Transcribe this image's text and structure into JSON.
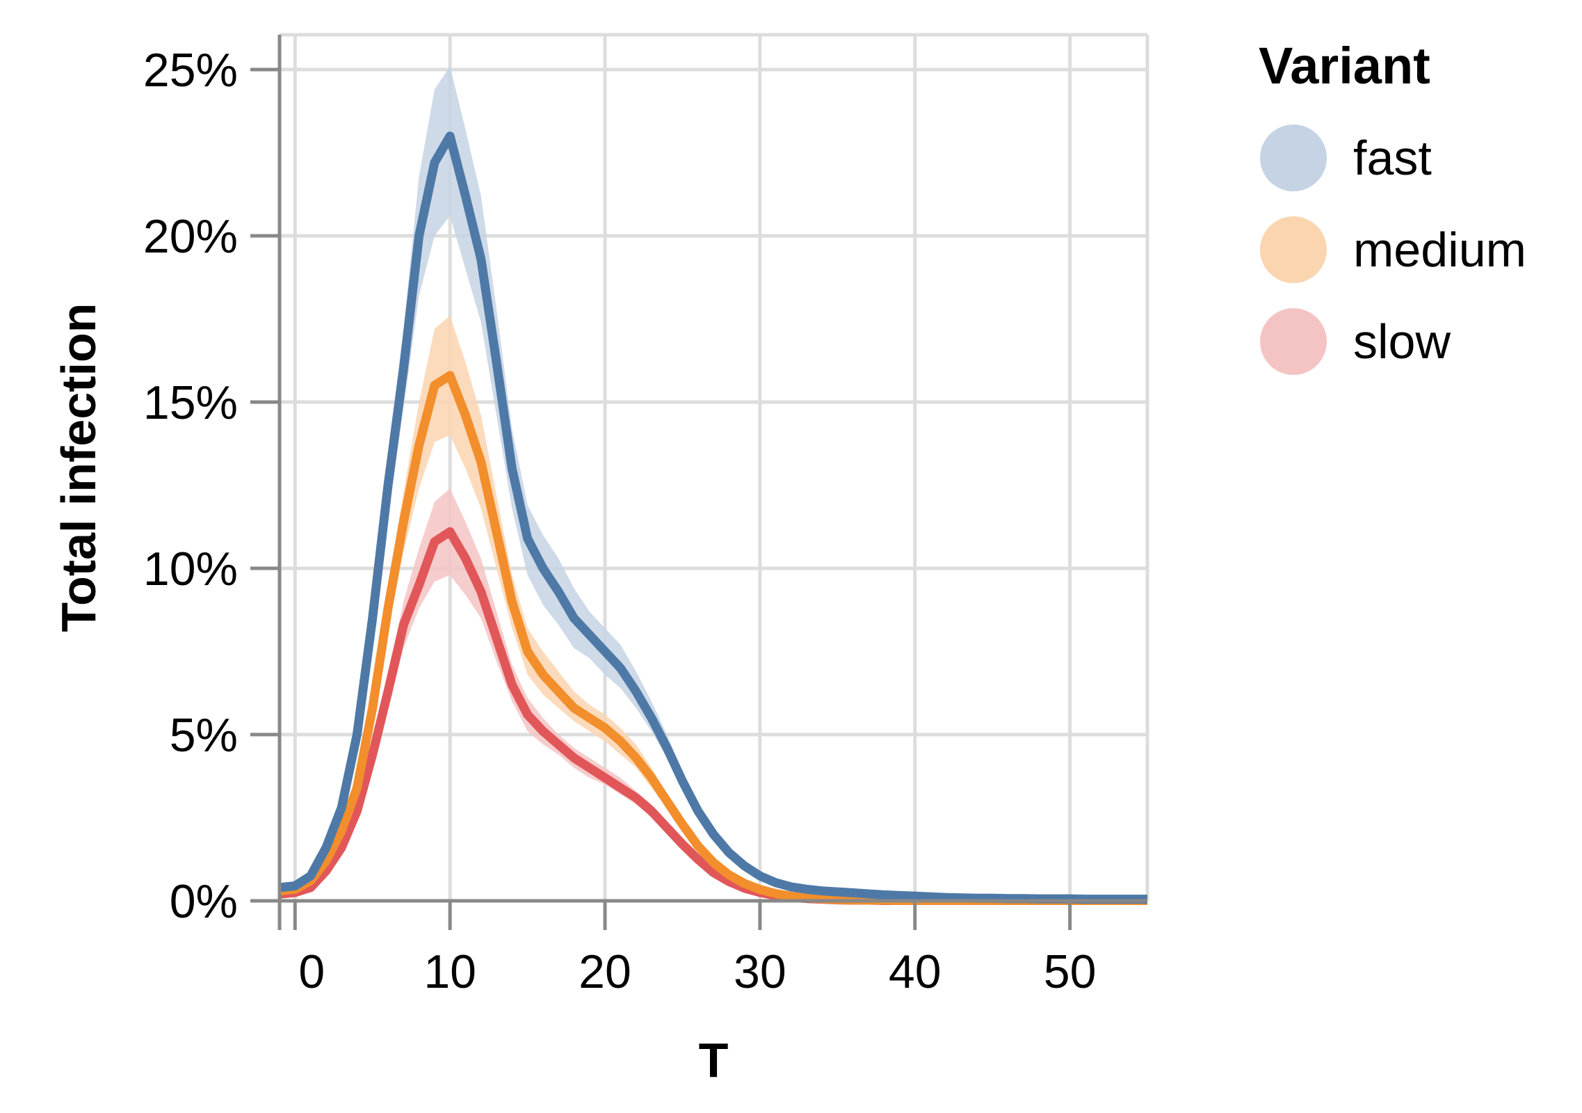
{
  "chart_data": {
    "type": "line",
    "title": "",
    "xlabel": "T",
    "ylabel": "Total infection",
    "xlim": [
      -1,
      55
    ],
    "ylim": [
      0,
      0.25
    ],
    "x_ticks": [
      0,
      10,
      20,
      30,
      40,
      50
    ],
    "x_tick_labels": [
      "0",
      "10",
      "20",
      "30",
      "40",
      "50"
    ],
    "y_ticks": [
      0,
      0.05,
      0.1,
      0.15,
      0.2,
      0.25
    ],
    "y_tick_labels": [
      "0%",
      "5%",
      "10%",
      "15%",
      "20%",
      "25%"
    ],
    "grid": true,
    "legend": {
      "title": "Variant",
      "position": "right"
    },
    "x": [
      -1,
      0,
      1,
      2,
      3,
      4,
      5,
      6,
      7,
      8,
      9,
      10,
      11,
      12,
      13,
      14,
      15,
      16,
      17,
      18,
      19,
      20,
      21,
      22,
      23,
      24,
      25,
      26,
      27,
      28,
      29,
      30,
      31,
      32,
      33,
      34,
      35,
      36,
      37,
      38,
      39,
      40,
      41,
      42,
      43,
      44,
      45,
      46,
      47,
      48,
      49,
      50,
      51,
      52,
      53,
      54,
      55
    ],
    "series": [
      {
        "name": "fast",
        "color": "#4e79a7",
        "band_color": "#c5d3e4",
        "values": [
          0.004,
          0.0045,
          0.0075,
          0.016,
          0.028,
          0.05,
          0.085,
          0.125,
          0.16,
          0.2,
          0.222,
          0.23,
          0.212,
          0.193,
          0.162,
          0.13,
          0.109,
          0.1,
          0.093,
          0.085,
          0.08,
          0.075,
          0.07,
          0.063,
          0.055,
          0.046,
          0.036,
          0.027,
          0.02,
          0.0145,
          0.0105,
          0.0075,
          0.0055,
          0.0042,
          0.0035,
          0.003,
          0.0027,
          0.0024,
          0.0021,
          0.0018,
          0.0016,
          0.0014,
          0.0012,
          0.001,
          0.0009,
          0.0008,
          0.0008,
          0.0007,
          0.0007,
          0.0006,
          0.0006,
          0.0006,
          0.0005,
          0.0005,
          0.0005,
          0.0005,
          0.0005
        ],
        "lower": [
          0.0035,
          0.004,
          0.0065,
          0.014,
          0.025,
          0.045,
          0.078,
          0.115,
          0.148,
          0.182,
          0.2,
          0.206,
          0.19,
          0.174,
          0.146,
          0.118,
          0.098,
          0.089,
          0.083,
          0.076,
          0.073,
          0.068,
          0.064,
          0.058,
          0.051,
          0.043,
          0.033,
          0.025,
          0.018,
          0.013,
          0.009,
          0.0065,
          0.0047,
          0.0036,
          0.003,
          0.0026,
          0.0023,
          0.002,
          0.0018,
          0.0015,
          0.0013,
          0.0012,
          0.001,
          0.0008,
          0.0007,
          0.0007,
          0.0006,
          0.0006,
          0.0005,
          0.0005,
          0.0005,
          0.0005,
          0.0004,
          0.0004,
          0.0004,
          0.0004,
          0.0004
        ],
        "upper": [
          0.0045,
          0.005,
          0.0085,
          0.018,
          0.031,
          0.055,
          0.092,
          0.135,
          0.172,
          0.218,
          0.244,
          0.251,
          0.232,
          0.212,
          0.178,
          0.142,
          0.119,
          0.11,
          0.103,
          0.094,
          0.087,
          0.082,
          0.077,
          0.069,
          0.06,
          0.05,
          0.039,
          0.029,
          0.022,
          0.016,
          0.012,
          0.0085,
          0.0063,
          0.0048,
          0.004,
          0.0034,
          0.0031,
          0.0028,
          0.0024,
          0.0021,
          0.0019,
          0.0016,
          0.0014,
          0.0012,
          0.0011,
          0.0009,
          0.0009,
          0.0008,
          0.0008,
          0.0007,
          0.0007,
          0.0007,
          0.0006,
          0.0006,
          0.0006,
          0.0006,
          0.0006
        ]
      },
      {
        "name": "medium",
        "color": "#f28e2b",
        "band_color": "#fbd5b0",
        "values": [
          0.003,
          0.0035,
          0.006,
          0.012,
          0.021,
          0.034,
          0.058,
          0.088,
          0.114,
          0.137,
          0.155,
          0.158,
          0.146,
          0.132,
          0.111,
          0.09,
          0.075,
          0.068,
          0.063,
          0.058,
          0.055,
          0.052,
          0.048,
          0.043,
          0.037,
          0.03,
          0.023,
          0.0165,
          0.0115,
          0.0078,
          0.0052,
          0.0034,
          0.0022,
          0.0014,
          0.0009,
          0.0006,
          0.0004,
          0.0003,
          0.0002,
          0.0002,
          0.0001,
          0.0001,
          0.0001,
          0.0001,
          0.0001,
          0.0001,
          0.0001,
          0.0001,
          0.0001,
          0.0001,
          0.0001,
          0.0001,
          0.0001,
          0.0001,
          0.0001,
          0.0001,
          0.0001
        ],
        "lower": [
          0.0025,
          0.003,
          0.005,
          0.0105,
          0.019,
          0.031,
          0.053,
          0.081,
          0.105,
          0.124,
          0.138,
          0.14,
          0.13,
          0.118,
          0.1,
          0.082,
          0.068,
          0.062,
          0.058,
          0.054,
          0.051,
          0.048,
          0.044,
          0.04,
          0.034,
          0.028,
          0.021,
          0.015,
          0.0105,
          0.007,
          0.0046,
          0.003,
          0.0019,
          0.0012,
          0.0008,
          0.0005,
          0.0003,
          0.0002,
          0.0002,
          0.0001,
          0.0001,
          0.0001,
          0.0001,
          0.0001,
          0.0001,
          0.0001,
          0.0001,
          0.0001,
          0.0001,
          0.0001,
          0.0001,
          0.0001,
          0.0001,
          0.0001,
          0.0001,
          0.0001,
          0.0001
        ],
        "upper": [
          0.0035,
          0.004,
          0.007,
          0.0135,
          0.023,
          0.037,
          0.063,
          0.095,
          0.123,
          0.15,
          0.172,
          0.176,
          0.162,
          0.146,
          0.122,
          0.098,
          0.082,
          0.075,
          0.069,
          0.063,
          0.059,
          0.056,
          0.052,
          0.047,
          0.04,
          0.032,
          0.025,
          0.018,
          0.0125,
          0.0086,
          0.0058,
          0.0038,
          0.0025,
          0.0016,
          0.001,
          0.0007,
          0.0005,
          0.0004,
          0.0003,
          0.0002,
          0.0002,
          0.0002,
          0.0002,
          0.0002,
          0.0002,
          0.0002,
          0.0002,
          0.0002,
          0.0002,
          0.0002,
          0.0002,
          0.0002,
          0.0002,
          0.0002,
          0.0002,
          0.0002,
          0.0002
        ]
      },
      {
        "name": "slow",
        "color": "#e15759",
        "band_color": "#f4c4c4",
        "values": [
          0.002,
          0.0025,
          0.004,
          0.009,
          0.016,
          0.027,
          0.044,
          0.063,
          0.083,
          0.095,
          0.108,
          0.111,
          0.103,
          0.093,
          0.079,
          0.065,
          0.056,
          0.051,
          0.047,
          0.043,
          0.04,
          0.037,
          0.034,
          0.031,
          0.027,
          0.022,
          0.017,
          0.0125,
          0.0085,
          0.0058,
          0.0038,
          0.0025,
          0.0016,
          0.001,
          0.0007,
          0.0005,
          0.0003,
          0.0002,
          0.0002,
          0.0001,
          0.0001,
          0.0001,
          0.0001,
          0.0001,
          0.0001,
          0.0001,
          0.0001,
          0.0001,
          0.0001,
          0.0001,
          0.0001,
          0.0001,
          0.0001,
          0.0001,
          0.0001,
          0.0001,
          0.0001
        ],
        "lower": [
          0.0017,
          0.002,
          0.0035,
          0.008,
          0.014,
          0.024,
          0.04,
          0.058,
          0.076,
          0.088,
          0.096,
          0.098,
          0.092,
          0.085,
          0.072,
          0.06,
          0.051,
          0.047,
          0.044,
          0.04,
          0.037,
          0.035,
          0.032,
          0.029,
          0.025,
          0.0205,
          0.016,
          0.0115,
          0.0078,
          0.0053,
          0.0034,
          0.0022,
          0.0014,
          0.0009,
          0.0006,
          0.0004,
          0.0003,
          0.0002,
          0.0001,
          0.0001,
          0.0001,
          0.0001,
          0.0001,
          0.0001,
          0.0001,
          0.0001,
          0.0001,
          0.0001,
          0.0001,
          0.0001,
          0.0001,
          0.0001,
          0.0001,
          0.0001,
          0.0001,
          0.0001,
          0.0001
        ],
        "upper": [
          0.0023,
          0.003,
          0.0045,
          0.01,
          0.018,
          0.03,
          0.048,
          0.068,
          0.09,
          0.106,
          0.12,
          0.124,
          0.114,
          0.103,
          0.087,
          0.071,
          0.061,
          0.055,
          0.05,
          0.046,
          0.043,
          0.04,
          0.037,
          0.033,
          0.029,
          0.024,
          0.018,
          0.0135,
          0.0092,
          0.0063,
          0.0042,
          0.0028,
          0.0018,
          0.0011,
          0.0008,
          0.0006,
          0.0004,
          0.0003,
          0.0002,
          0.0002,
          0.0002,
          0.0002,
          0.0002,
          0.0002,
          0.0002,
          0.0002,
          0.0002,
          0.0002,
          0.0002,
          0.0002,
          0.0002,
          0.0002,
          0.0002,
          0.0002,
          0.0002,
          0.0002,
          0.0002
        ]
      }
    ]
  }
}
